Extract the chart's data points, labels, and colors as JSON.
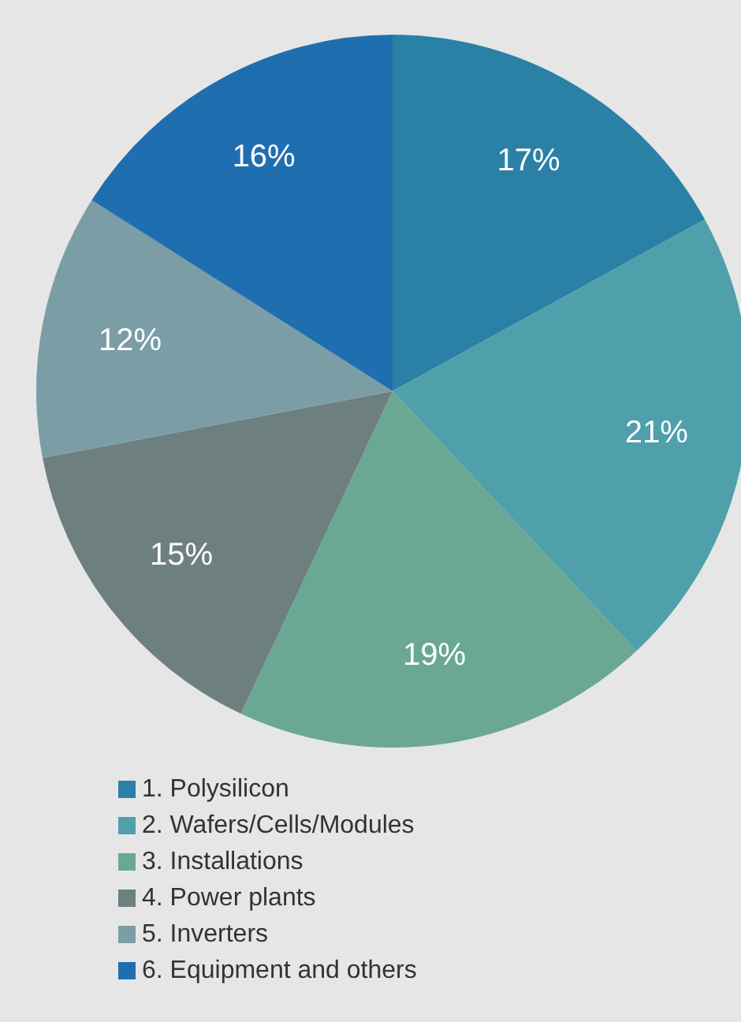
{
  "chart_data": {
    "type": "pie",
    "categories": [
      "1. Polysilicon",
      "2. Wafers/Cells/Modules",
      "3. Installations",
      "4. Power plants",
      "5. Inverters",
      "6. Equipment and others"
    ],
    "values": [
      17,
      21,
      19,
      15,
      12,
      16
    ],
    "colors": [
      "#2a81a5",
      "#4fa0ab",
      "#6aa893",
      "#6e7f80",
      "#7b9ea6",
      "#1f6fb0"
    ],
    "value_labels": [
      "17%",
      "21%",
      "19%",
      "15%",
      "12%",
      "16%"
    ],
    "legend": "bottom"
  }
}
